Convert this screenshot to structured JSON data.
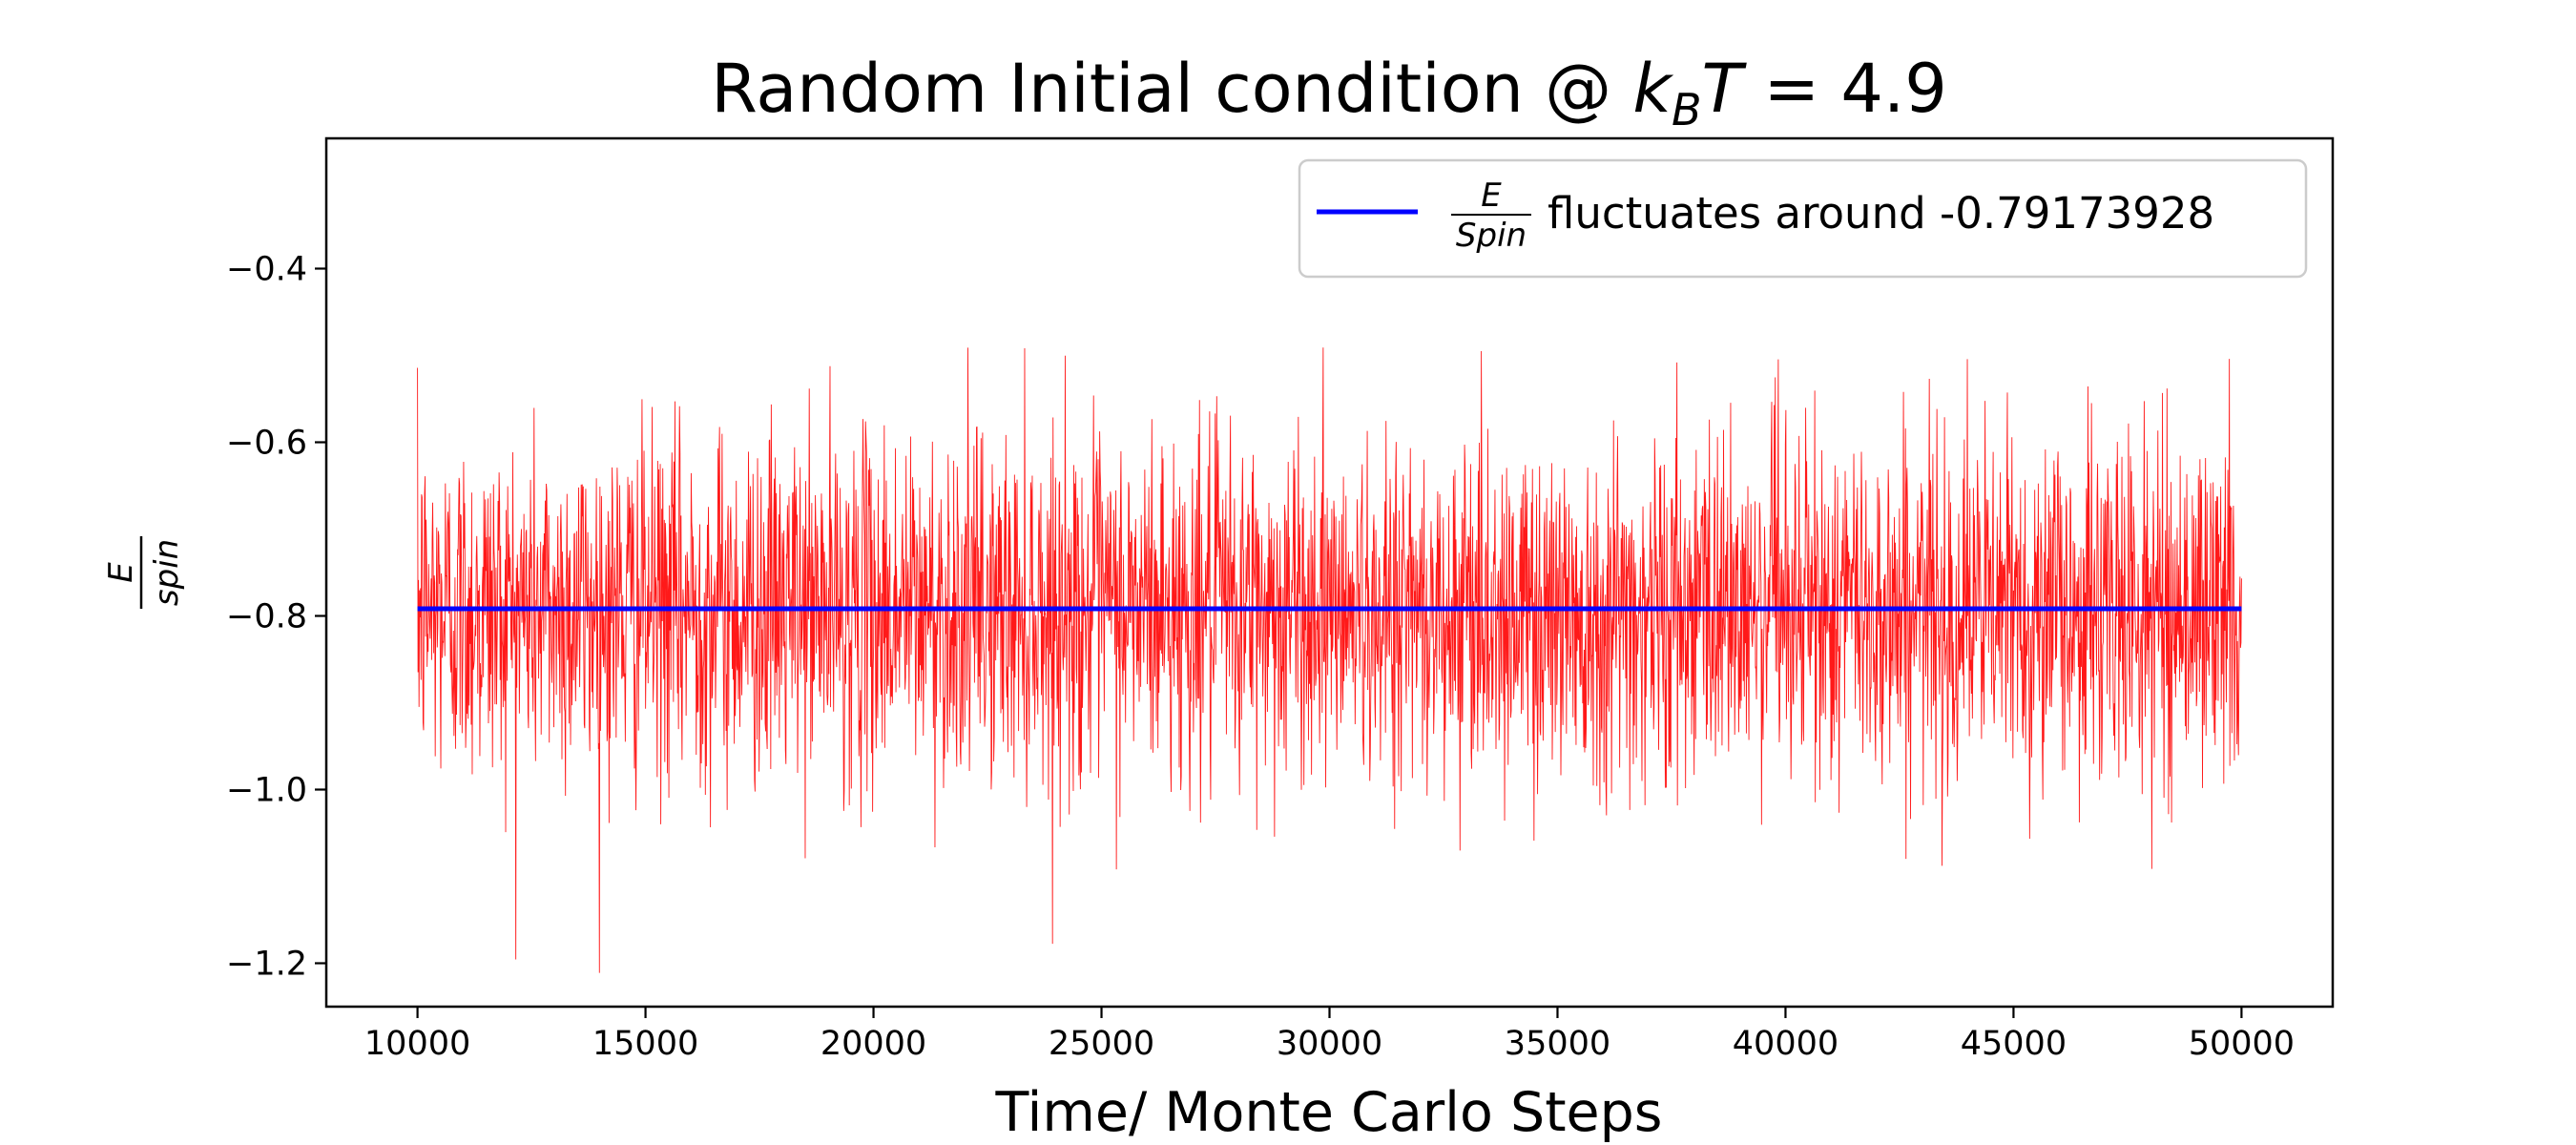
{
  "chart_data": {
    "type": "line",
    "title": {
      "prefix": "Random Initial condition @ ",
      "symbol": "k",
      "subscript": "B",
      "symbol2": "T",
      "suffix": " = 4.9"
    },
    "xlabel": "Time/ Monte Carlo Steps",
    "ylabel": {
      "numerator": "E",
      "denominator": "spin"
    },
    "xlim": [
      8000,
      52000
    ],
    "ylim": [
      -1.25,
      -0.25
    ],
    "xticks": [
      10000,
      15000,
      20000,
      25000,
      30000,
      35000,
      40000,
      45000,
      50000
    ],
    "xtick_labels": [
      "10000",
      "15000",
      "20000",
      "25000",
      "30000",
      "35000",
      "40000",
      "45000",
      "50000"
    ],
    "yticks": [
      -0.4,
      -0.6,
      -0.8,
      -1.0,
      -1.2
    ],
    "ytick_labels": [
      "−0.4",
      "−0.6",
      "−0.8",
      "−1.0",
      "−1.2"
    ],
    "grid": false,
    "legend_position": "top-right",
    "series": [
      {
        "name": "",
        "color": "#ff0000",
        "style": "thin-noisy-line",
        "x_range": [
          10000,
          50000
        ],
        "mean": -0.79173928,
        "observed_min": -1.25,
        "observed_max": -0.49,
        "typical_band": [
          -0.95,
          -0.63
        ]
      },
      {
        "name": "E/Spin fluctuates around -0.79173928",
        "color": "#0000ff",
        "style": "horizontal-line",
        "x": [
          10000,
          50000
        ],
        "y": [
          -0.79173928,
          -0.79173928
        ]
      }
    ],
    "legend": {
      "numerator": "E",
      "denominator": "Spin",
      "text": "fluctuates around -0.79173928"
    }
  }
}
